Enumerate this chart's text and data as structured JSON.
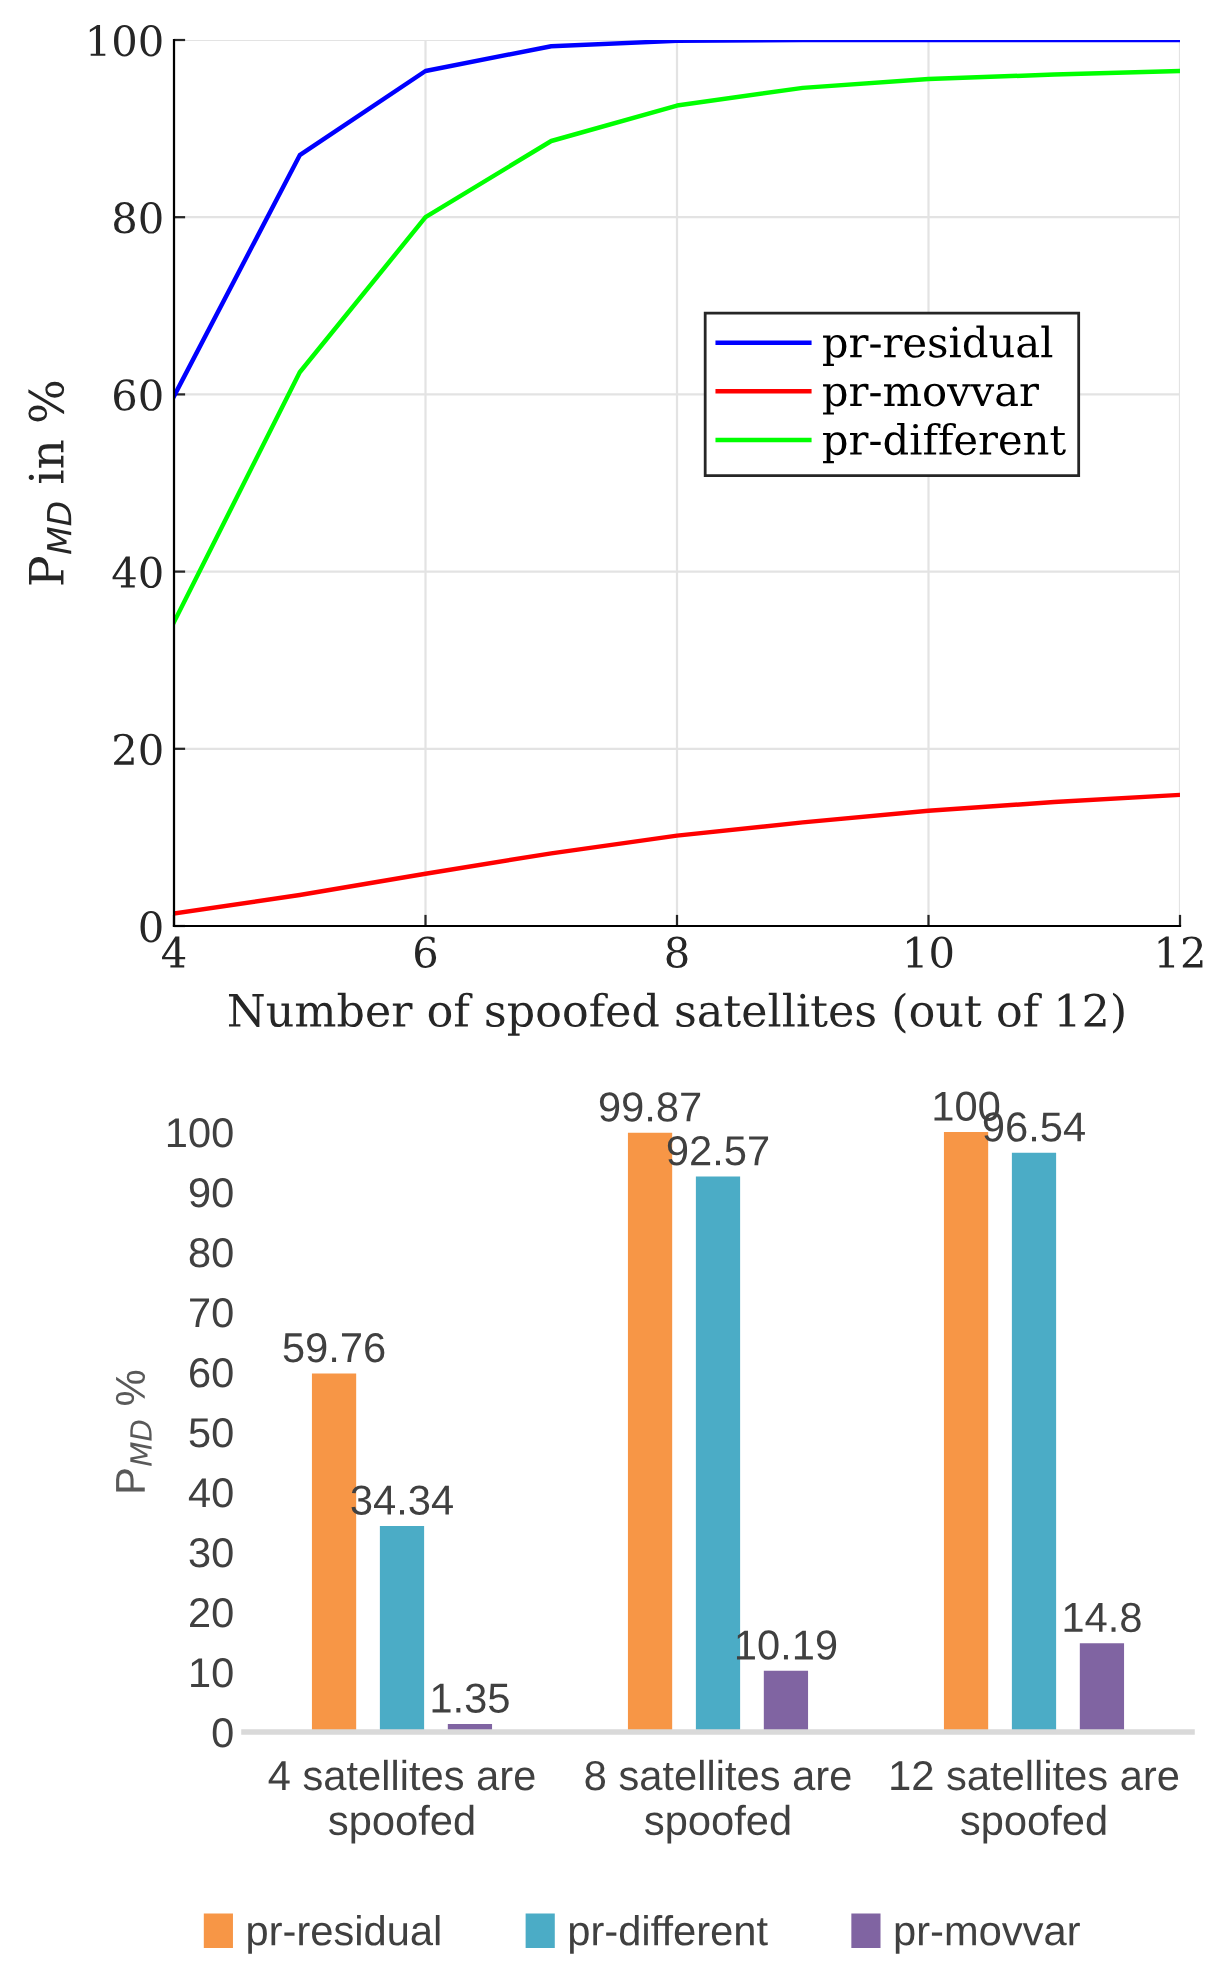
{
  "chart_data": [
    {
      "type": "line",
      "xlabel": "Number of spoofed satellites (out of 12)",
      "ylabel": "P$_{MD}$ in %",
      "x": [
        4,
        5,
        6,
        7,
        8,
        9,
        10,
        11,
        12
      ],
      "xlim": [
        4,
        12
      ],
      "xticks": [
        4,
        6,
        8,
        10,
        12
      ],
      "ylim": [
        0,
        100
      ],
      "yticks": [
        0,
        20,
        40,
        60,
        80,
        100
      ],
      "grid": true,
      "legend": "right",
      "marker": "none",
      "line_style": "solid",
      "series": [
        {
          "name": "pr-residual",
          "color": "#0000ff",
          "values": [
            59.8,
            87,
            96.5,
            99.3,
            99.9,
            100,
            100,
            100,
            100
          ]
        },
        {
          "name": "pr-movvar",
          "color": "#ff0000",
          "values": [
            1.4,
            3.5,
            5.9,
            8.2,
            10.2,
            11.7,
            13,
            14,
            14.8
          ]
        },
        {
          "name": "pr-different",
          "color": "#00ff00",
          "values": [
            34.3,
            62.5,
            80,
            88.6,
            92.6,
            94.6,
            95.6,
            96.1,
            96.5
          ]
        }
      ]
    },
    {
      "type": "bar",
      "ylabel": "P$_{MD}$ %",
      "categories": [
        "4 satellites are\nspoofed",
        "8 satellites are\nspoofed",
        "12 satellites are\nspoofed"
      ],
      "ylim": [
        0,
        100
      ],
      "yticks": [
        0,
        10,
        20,
        30,
        40,
        50,
        60,
        70,
        80,
        90,
        100
      ],
      "grid": false,
      "legend": "bottom",
      "data_labels": true,
      "series": [
        {
          "name": "pr-residual",
          "color": "#f79646",
          "values": [
            59.76,
            99.87,
            100
          ]
        },
        {
          "name": "pr-different",
          "color": "#4bacc6",
          "values": [
            34.34,
            92.57,
            96.54
          ]
        },
        {
          "name": "pr-movvar",
          "color": "#8064a2",
          "values": [
            1.35,
            10.19,
            14.8
          ]
        }
      ]
    }
  ]
}
